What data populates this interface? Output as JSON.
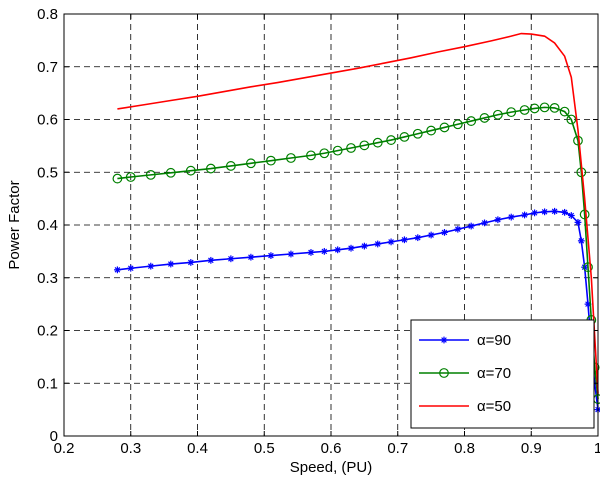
{
  "chart_data": {
    "type": "line",
    "title": "",
    "xlabel": "Speed, (PU)",
    "ylabel": "Power Factor",
    "xlim": [
      0.2,
      1.0
    ],
    "ylim": [
      0,
      0.8
    ],
    "xticks": [
      0.2,
      0.3,
      0.4,
      0.5,
      0.6,
      0.7,
      0.8,
      0.9,
      1.0
    ],
    "xtick_labels": [
      "0.2",
      "0.3",
      "0.4",
      "0.5",
      "0.6",
      "0.7",
      "0.8",
      "0.9",
      "1"
    ],
    "yticks": [
      0,
      0.1,
      0.2,
      0.3,
      0.4,
      0.5,
      0.6,
      0.7,
      0.8
    ],
    "ytick_labels": [
      "0",
      "0.1",
      "0.2",
      "0.3",
      "0.4",
      "0.5",
      "0.6",
      "0.7",
      "0.8"
    ],
    "grid": true,
    "legend_position": "bottom-right",
    "series": [
      {
        "name": "α=90",
        "color": "#0000ff",
        "marker": "asterisk",
        "x": [
          0.28,
          0.3,
          0.33,
          0.36,
          0.39,
          0.42,
          0.45,
          0.48,
          0.51,
          0.54,
          0.57,
          0.59,
          0.61,
          0.63,
          0.65,
          0.67,
          0.69,
          0.71,
          0.73,
          0.75,
          0.77,
          0.79,
          0.81,
          0.83,
          0.85,
          0.87,
          0.89,
          0.905,
          0.92,
          0.935,
          0.95,
          0.96,
          0.97,
          0.975,
          0.98,
          0.985,
          0.99,
          0.995,
          1.0
        ],
        "y": [
          0.315,
          0.318,
          0.322,
          0.326,
          0.329,
          0.333,
          0.336,
          0.339,
          0.342,
          0.345,
          0.348,
          0.35,
          0.353,
          0.356,
          0.36,
          0.364,
          0.368,
          0.372,
          0.376,
          0.381,
          0.386,
          0.392,
          0.398,
          0.404,
          0.41,
          0.415,
          0.419,
          0.423,
          0.425,
          0.426,
          0.424,
          0.418,
          0.405,
          0.37,
          0.32,
          0.25,
          0.17,
          0.1,
          0.05
        ]
      },
      {
        "name": "α=70",
        "color": "#008000",
        "marker": "circle",
        "x": [
          0.28,
          0.3,
          0.33,
          0.36,
          0.39,
          0.42,
          0.45,
          0.48,
          0.51,
          0.54,
          0.57,
          0.59,
          0.61,
          0.63,
          0.65,
          0.67,
          0.69,
          0.71,
          0.73,
          0.75,
          0.77,
          0.79,
          0.81,
          0.83,
          0.85,
          0.87,
          0.89,
          0.905,
          0.92,
          0.935,
          0.95,
          0.96,
          0.97,
          0.975,
          0.98,
          0.985,
          0.99,
          0.995,
          1.0
        ],
        "y": [
          0.488,
          0.491,
          0.495,
          0.499,
          0.503,
          0.507,
          0.512,
          0.517,
          0.522,
          0.527,
          0.532,
          0.536,
          0.541,
          0.546,
          0.551,
          0.556,
          0.561,
          0.567,
          0.573,
          0.579,
          0.585,
          0.591,
          0.597,
          0.603,
          0.609,
          0.614,
          0.618,
          0.621,
          0.623,
          0.622,
          0.615,
          0.6,
          0.56,
          0.5,
          0.42,
          0.32,
          0.22,
          0.13,
          0.07
        ]
      },
      {
        "name": "α=50",
        "color": "#ff0000",
        "marker": "none",
        "x": [
          0.28,
          0.32,
          0.36,
          0.4,
          0.44,
          0.48,
          0.52,
          0.56,
          0.6,
          0.64,
          0.68,
          0.72,
          0.76,
          0.8,
          0.84,
          0.87,
          0.885,
          0.9,
          0.92,
          0.935,
          0.95,
          0.96,
          0.97,
          0.98,
          0.99,
          1.0
        ],
        "y": [
          0.62,
          0.628,
          0.636,
          0.644,
          0.653,
          0.662,
          0.67,
          0.679,
          0.688,
          0.697,
          0.707,
          0.717,
          0.728,
          0.738,
          0.749,
          0.758,
          0.763,
          0.762,
          0.758,
          0.745,
          0.72,
          0.68,
          0.58,
          0.45,
          0.3,
          0.08
        ]
      }
    ]
  }
}
